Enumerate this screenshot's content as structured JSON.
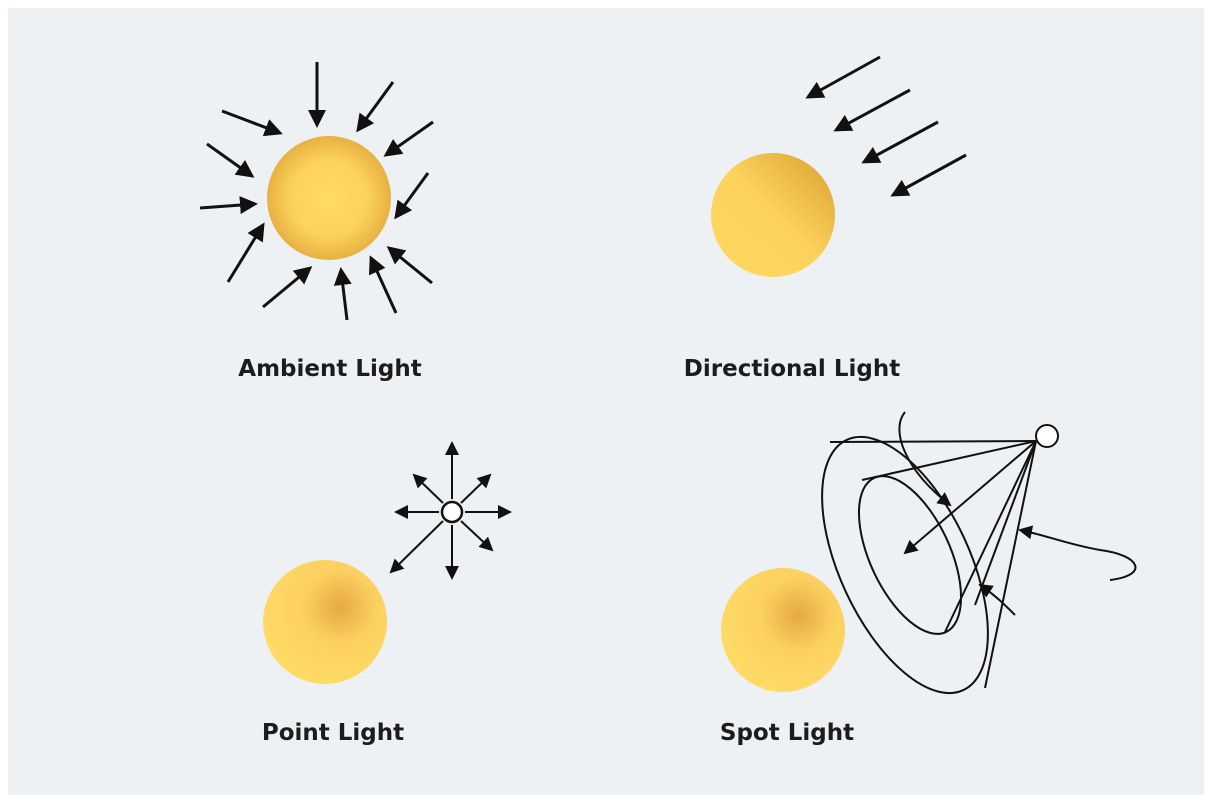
{
  "panels": [
    {
      "label": "Ambient Light"
    },
    {
      "label": "Directional Light"
    },
    {
      "label": "Point Light"
    },
    {
      "label": "Spot Light"
    }
  ]
}
